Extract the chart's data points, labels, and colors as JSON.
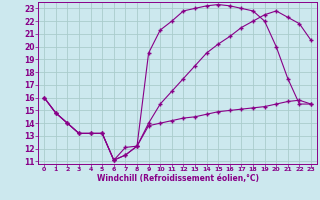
{
  "xlabel": "Windchill (Refroidissement éolien,°C)",
  "bg_color": "#cce8ee",
  "grid_color": "#aacccc",
  "line_color": "#880088",
  "xlim": [
    -0.5,
    23.5
  ],
  "ylim": [
    10.8,
    23.5
  ],
  "xticks": [
    0,
    1,
    2,
    3,
    4,
    5,
    6,
    7,
    8,
    9,
    10,
    11,
    12,
    13,
    14,
    15,
    16,
    17,
    18,
    19,
    20,
    21,
    22,
    23
  ],
  "yticks": [
    11,
    12,
    13,
    14,
    15,
    16,
    17,
    18,
    19,
    20,
    21,
    22,
    23
  ],
  "curve1_x": [
    0,
    1,
    2,
    3,
    4,
    5,
    6,
    7,
    8,
    9,
    10,
    11,
    12,
    13,
    14,
    15,
    16,
    17,
    18,
    19,
    20,
    21,
    22,
    23
  ],
  "curve1_y": [
    16,
    14.8,
    14,
    13.2,
    13.2,
    13.2,
    11.1,
    12.1,
    12.2,
    19.5,
    21.3,
    22.0,
    22.8,
    23.0,
    23.2,
    23.3,
    23.2,
    23.0,
    22.8,
    22.0,
    20.0,
    17.5,
    15.5,
    15.5
  ],
  "curve2_x": [
    0,
    1,
    2,
    3,
    4,
    5,
    6,
    7,
    8,
    9,
    10,
    11,
    12,
    13,
    14,
    15,
    16,
    17,
    18,
    19,
    20,
    21,
    22,
    23
  ],
  "curve2_y": [
    16,
    14.8,
    14,
    13.2,
    13.2,
    13.2,
    11.1,
    11.5,
    12.2,
    14.0,
    15.5,
    16.5,
    17.5,
    18.5,
    19.5,
    20.2,
    20.8,
    21.5,
    22.0,
    22.5,
    22.8,
    22.3,
    21.8,
    20.5
  ],
  "curve3_x": [
    0,
    1,
    2,
    3,
    4,
    5,
    6,
    7,
    8,
    9,
    10,
    11,
    12,
    13,
    14,
    15,
    16,
    17,
    18,
    19,
    20,
    21,
    22,
    23
  ],
  "curve3_y": [
    16,
    14.8,
    14,
    13.2,
    13.2,
    13.2,
    11.1,
    11.5,
    12.2,
    13.8,
    14.0,
    14.2,
    14.4,
    14.5,
    14.7,
    14.9,
    15.0,
    15.1,
    15.2,
    15.3,
    15.5,
    15.7,
    15.8,
    15.5
  ]
}
